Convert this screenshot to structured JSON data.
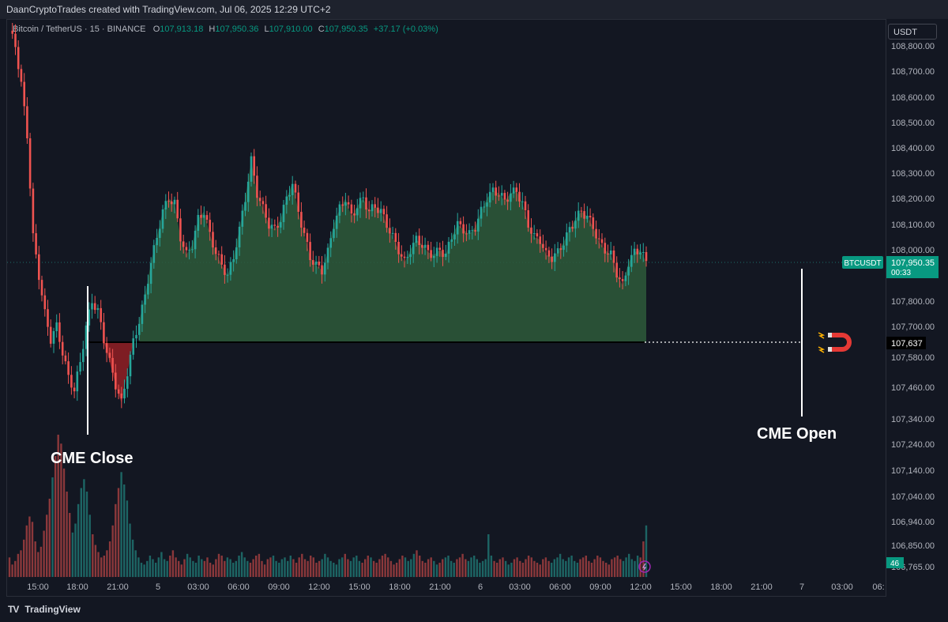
{
  "header": {
    "attribution": "DaanCryptoTrades created with TradingView.com, Jul 06, 2025 12:29 UTC+2"
  },
  "legend": {
    "symbol": "Bitcoin / TetherUS · 15 · BINANCE",
    "open_label": "O",
    "open": "107,913.18",
    "high_label": "H",
    "high": "107,950.36",
    "low_label": "L",
    "low": "107,910.00",
    "close_label": "C",
    "close": "107,950.35",
    "change": "+37.17 (+0.03%)"
  },
  "price_scale": {
    "currency": "USDT"
  },
  "price_tag": {
    "symbol": "BTCUSDT",
    "price": "107,950.35",
    "countdown": "00:33"
  },
  "gap_tag": "107,637",
  "volume_tag": "46",
  "annotations": {
    "cme_close": "CME Close",
    "cme_open": "CME Open"
  },
  "brand": {
    "logo": "TV",
    "name": "TradingView"
  },
  "colors": {
    "up": "#26a69a",
    "down": "#ef5350",
    "gap_fill": "#2e5a3a",
    "gap_fill_red": "#8b1e24",
    "background": "#131722"
  },
  "icons": {
    "magnet": "magnet-icon",
    "flash": "flash-icon"
  },
  "chart_data": {
    "type": "candlestick",
    "y_tick_labels": [
      "108,800.00",
      "108,700.00",
      "108,600.00",
      "108,500.00",
      "108,400.00",
      "108,300.00",
      "108,200.00",
      "108,100.00",
      "108,000.00",
      "107,800.00",
      "107,700.00",
      "107,580.00",
      "107,460.00",
      "107,340.00",
      "107,240.00",
      "107,140.00",
      "107,040.00",
      "106,940.00",
      "106,850.00",
      "106,765.00"
    ],
    "x_tick_labels": [
      "15:00",
      "18:00",
      "21:00",
      "5",
      "03:00",
      "06:00",
      "09:00",
      "12:00",
      "15:00",
      "18:00",
      "21:00",
      "6",
      "03:00",
      "06:00",
      "09:00",
      "12:00",
      "15:00",
      "18:00",
      "21:00",
      "7",
      "03:00",
      "06:"
    ],
    "current_price": 107950.35,
    "cme_gap_level": 107637,
    "path": [
      [
        0,
        108860
      ],
      [
        2,
        108800
      ],
      [
        4,
        108650
      ],
      [
        6,
        108450
      ],
      [
        8,
        108050
      ],
      [
        10,
        107900
      ],
      [
        12,
        107750
      ],
      [
        14,
        107650
      ],
      [
        16,
        107700
      ],
      [
        18,
        107600
      ],
      [
        20,
        107500
      ],
      [
        22,
        107450
      ],
      [
        24,
        107560
      ],
      [
        26,
        107700
      ],
      [
        28,
        107800
      ],
      [
        30,
        107760
      ],
      [
        32,
        107650
      ],
      [
        34,
        107560
      ],
      [
        36,
        107470
      ],
      [
        38,
        107400
      ],
      [
        40,
        107520
      ],
      [
        42,
        107640
      ],
      [
        44,
        107720
      ],
      [
        46,
        107820
      ],
      [
        48,
        107950
      ],
      [
        50,
        108050
      ],
      [
        52,
        108150
      ],
      [
        54,
        108200
      ],
      [
        56,
        108180
      ],
      [
        58,
        108050
      ],
      [
        60,
        107980
      ],
      [
        62,
        108020
      ],
      [
        64,
        108120
      ],
      [
        66,
        108150
      ],
      [
        68,
        108060
      ],
      [
        70,
        107990
      ],
      [
        72,
        107940
      ],
      [
        74,
        107900
      ],
      [
        76,
        107970
      ],
      [
        78,
        108080
      ],
      [
        80,
        108200
      ],
      [
        82,
        108350
      ],
      [
        84,
        108220
      ],
      [
        86,
        108160
      ],
      [
        88,
        108100
      ],
      [
        90,
        108080
      ],
      [
        92,
        108120
      ],
      [
        94,
        108200
      ],
      [
        96,
        108260
      ],
      [
        98,
        108150
      ],
      [
        100,
        108060
      ],
      [
        102,
        107970
      ],
      [
        104,
        107940
      ],
      [
        106,
        107920
      ],
      [
        108,
        107990
      ],
      [
        110,
        108100
      ],
      [
        112,
        108160
      ],
      [
        114,
        108200
      ],
      [
        116,
        108130
      ],
      [
        118,
        108170
      ],
      [
        120,
        108200
      ],
      [
        122,
        108150
      ],
      [
        124,
        108170
      ],
      [
        126,
        108150
      ],
      [
        128,
        108100
      ],
      [
        130,
        108050
      ],
      [
        132,
        108000
      ],
      [
        134,
        107950
      ],
      [
        136,
        108000
      ],
      [
        138,
        108040
      ],
      [
        140,
        108020
      ],
      [
        142,
        107990
      ],
      [
        144,
        107980
      ],
      [
        146,
        108000
      ],
      [
        148,
        107980
      ],
      [
        150,
        108050
      ],
      [
        152,
        108100
      ],
      [
        154,
        108080
      ],
      [
        156,
        108060
      ],
      [
        158,
        108090
      ],
      [
        160,
        108150
      ],
      [
        162,
        108200
      ],
      [
        164,
        108230
      ],
      [
        166,
        108220
      ],
      [
        168,
        108190
      ],
      [
        170,
        108220
      ],
      [
        172,
        108230
      ],
      [
        174,
        108180
      ],
      [
        176,
        108100
      ],
      [
        178,
        108050
      ],
      [
        180,
        108040
      ],
      [
        182,
        107980
      ],
      [
        184,
        107970
      ],
      [
        186,
        107990
      ],
      [
        188,
        108030
      ],
      [
        190,
        108080
      ],
      [
        192,
        108120
      ],
      [
        194,
        108150
      ],
      [
        196,
        108130
      ],
      [
        198,
        108090
      ],
      [
        200,
        108030
      ],
      [
        202,
        108000
      ],
      [
        204,
        107980
      ],
      [
        206,
        107910
      ],
      [
        208,
        107860
      ],
      [
        210,
        107950
      ],
      [
        212,
        107990
      ],
      [
        214,
        108000
      ],
      [
        216,
        107950
      ]
    ],
    "volume": [
      22,
      14,
      18,
      26,
      30,
      42,
      58,
      68,
      62,
      40,
      28,
      34,
      52,
      70,
      88,
      112,
      136,
      160,
      150,
      122,
      96,
      72,
      50,
      60,
      82,
      100,
      110,
      96,
      70,
      48,
      36,
      28,
      22,
      24,
      30,
      40,
      58,
      82,
      100,
      118,
      104,
      86,
      60,
      42,
      30,
      22,
      16,
      14,
      18,
      24,
      20,
      16,
      22,
      28,
      20,
      18,
      24,
      30,
      22,
      18,
      14,
      20,
      26,
      22,
      18,
      16,
      24,
      20,
      18,
      22,
      16,
      14,
      20,
      26,
      24,
      18,
      22,
      20,
      16,
      18,
      24,
      28,
      22,
      18,
      16,
      20,
      24,
      26,
      18,
      14,
      20,
      22,
      24,
      18,
      16,
      20,
      22,
      18,
      24,
      20,
      16,
      22,
      26,
      20,
      18,
      24,
      22,
      16,
      18,
      20,
      26,
      22,
      18,
      16,
      14,
      20,
      22,
      26,
      20,
      18,
      22,
      24,
      18,
      16,
      20,
      24,
      22,
      18,
      16,
      20,
      24,
      26,
      22,
      18,
      14,
      16,
      20,
      24,
      22,
      18,
      20,
      26,
      30,
      24,
      18,
      16,
      20,
      22,
      18,
      14,
      16,
      20,
      22,
      24,
      18,
      16,
      20,
      22,
      26,
      20,
      18,
      22,
      24,
      20,
      16,
      18,
      20,
      48,
      24,
      18,
      16,
      20,
      22,
      18,
      14,
      16,
      20,
      22,
      18,
      16,
      20,
      24,
      22,
      18,
      16,
      14,
      20,
      22,
      18,
      16,
      20,
      22,
      26,
      20,
      18,
      22,
      24,
      18,
      16,
      20,
      22,
      24,
      18,
      16,
      20,
      24,
      22,
      18,
      16,
      14,
      20,
      22,
      24,
      20,
      18,
      22,
      26,
      20,
      18,
      24,
      22,
      40,
      58
    ],
    "ylim": [
      106765,
      108860
    ]
  }
}
